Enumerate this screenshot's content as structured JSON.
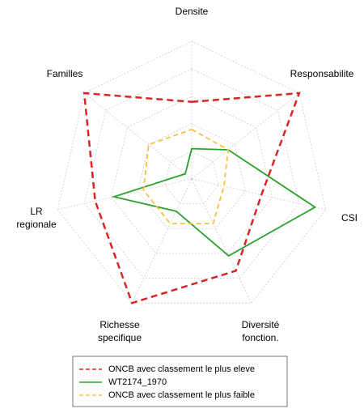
{
  "chart_data": {
    "type": "radar",
    "categories": [
      "Densite",
      "Responsabilite",
      "CSI",
      "Diversité fonction.",
      "Richesse specifique",
      "LR regionale",
      "Familles"
    ],
    "rlim": [
      0,
      5
    ],
    "rticks": [
      1,
      2,
      3,
      4,
      5
    ],
    "grid": true,
    "series": [
      {
        "name": "ONCB avec classement le plus eleve",
        "color": "#d62728",
        "dash": "dashed",
        "values": [
          2.8,
          5,
          2.6,
          3.7,
          5,
          3.6,
          5
        ]
      },
      {
        "name": "WT2174_1970",
        "color": "#2ca02c",
        "dash": "solid",
        "values": [
          1.1,
          1.7,
          4.6,
          3.1,
          1.3,
          2.9,
          0.3
        ]
      },
      {
        "name": "ONCB avec classement le plus faible",
        "color": "#f5c242",
        "dash": "dashed",
        "values": [
          1.8,
          1.7,
          1.2,
          1.8,
          1.8,
          1.8,
          2.0
        ]
      }
    ]
  }
}
